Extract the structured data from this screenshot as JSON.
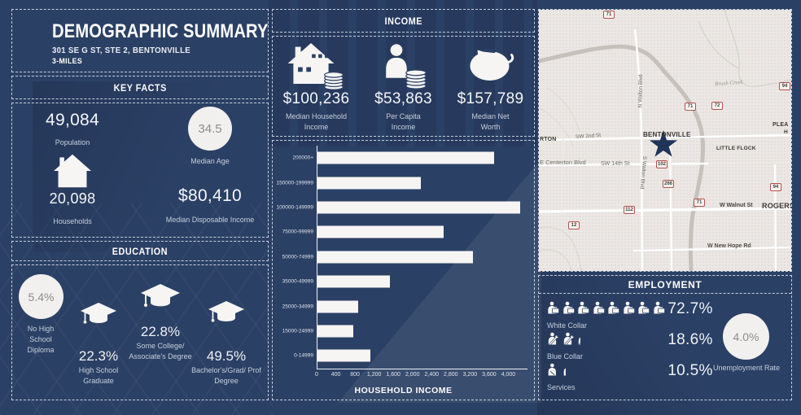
{
  "colors": {
    "background": "#2b4065",
    "bar": "#f6f5f3",
    "circle_fill": "#f1f0ee",
    "circle_text": "#8e8d8a",
    "accent_white": "#f6f5f3",
    "muted_label": "#c6cedb",
    "map_bg": "#ece7e3",
    "shield_border": "#b5524d",
    "star": "#203358"
  },
  "title": {
    "heading": "DEMOGRAPHIC SUMMARY",
    "address": "301 SE G ST, STE 2, BENTONVILLE",
    "radius": "3-MILES"
  },
  "key_facts": {
    "header": "KEY FACTS",
    "population": {
      "value": "49,084",
      "label": "Population"
    },
    "median_age": {
      "value": "34.5",
      "label": "Median Age"
    },
    "households": {
      "value": "20,098",
      "label": "Households",
      "icon": "house-icon"
    },
    "median_disposable_income": {
      "value": "$80,410",
      "label": "Median Disposable Income"
    }
  },
  "education": {
    "header": "EDUCATION",
    "items": [
      {
        "value": "5.4%",
        "label": "No High School Diploma",
        "icon": "circle-badge"
      },
      {
        "value": "22.3%",
        "label": "High School Graduate",
        "icon": "graduation-cap-icon"
      },
      {
        "value": "22.8%",
        "label": "Some College/ Associate's Degree",
        "icon": "graduation-cap-icon"
      },
      {
        "value": "49.5%",
        "label": "Bachelor's/Grad/ Prof Degree",
        "icon": "graduation-cap-icon"
      }
    ]
  },
  "income": {
    "header": "INCOME",
    "items": [
      {
        "value": "$100,236",
        "label": "Median Household Income",
        "icon": "house-coins-icon"
      },
      {
        "value": "$53,863",
        "label": "Per Capita Income",
        "icon": "person-coins-icon"
      },
      {
        "value": "$157,789",
        "label": "Median Net Worth",
        "icon": "piggy-bank-icon"
      }
    ]
  },
  "chart_data": {
    "type": "bar",
    "orientation": "horizontal",
    "title": "",
    "xlabel": "HOUSEHOLD INCOME",
    "ylabel": "",
    "categories": [
      "200000+",
      "150000-199999",
      "100000-149999",
      "75000-99999",
      "50000-74999",
      "35000-49999",
      "25000-34999",
      "15000-24999",
      "0-14999"
    ],
    "values": [
      3700,
      2170,
      4250,
      2650,
      3250,
      1520,
      850,
      750,
      1110
    ],
    "xlim": [
      0,
      4400
    ],
    "xticks": [
      "0",
      "400",
      "800",
      "1,200",
      "1,600",
      "2,000",
      "2,400",
      "2,800",
      "3,200",
      "3,600",
      "4,000"
    ],
    "xtick_values": [
      0,
      400,
      800,
      1200,
      1600,
      2000,
      2400,
      2800,
      3200,
      3600,
      4000
    ],
    "grid": false,
    "legend": false,
    "bar_color": "#f6f5f3"
  },
  "employment": {
    "header": "EMPLOYMENT",
    "categories": [
      {
        "label": "White Collar",
        "value": "72.7%",
        "icon": "white-collar",
        "icon_count": 8,
        "icon_partial": false
      },
      {
        "label": "Blue Collar",
        "value": "18.6%",
        "icon": "blue-collar",
        "icon_count": 2,
        "icon_partial": true
      },
      {
        "label": "Services",
        "value": "10.5%",
        "icon": "services",
        "icon_count": 1,
        "icon_partial": true
      }
    ],
    "unemployment": {
      "value": "4.0%",
      "label": "Unemployment Rate"
    }
  },
  "map": {
    "cities": {
      "bentonville": "BENTONVILLE",
      "little_flock": "LITTLE FLOCK",
      "rogers": "ROGERS",
      "centerton_partial": "RTON",
      "pleasant_partial_1": "PLEA",
      "pleasant_partial_2": "H"
    },
    "streets": {
      "sw_2nd": "SW 2nd St",
      "centerton_blvd": "E Centerton Blvd",
      "sw_14th": "SW 14th St",
      "n_walton": "N Walton Blvd",
      "s_walton": "S Walton Blvd",
      "walnut": "W Walnut St",
      "new_hope": "W New Hope Rd"
    },
    "water": {
      "brush_creek": "Brush Creek"
    },
    "shields": [
      "71",
      "94",
      "71",
      "72",
      "102",
      "266",
      "94",
      "71",
      "112",
      "12"
    ]
  }
}
